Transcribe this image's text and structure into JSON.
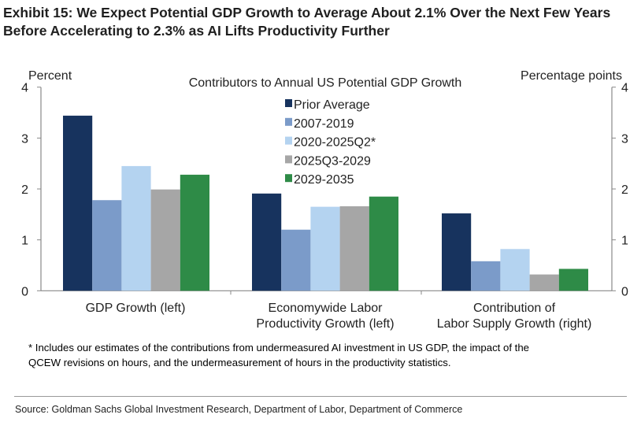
{
  "title_line1": "Exhibit 15: We Expect Potential GDP Growth to Average About 2.1% Over the Next Few Years",
  "title_line2": "Before Accelerating to 2.3% as AI Lifts Productivity Further",
  "footnote_line1": "* Includes our estimates of the contributions from undermeasured AI investment in US GDP, the impact of the",
  "footnote_line2": "QCEW revisions on hours, and the undermeasurement of hours in the productivity statistics.",
  "source": "Source: Goldman Sachs Global Investment Research, Department of Labor, Department of Commerce",
  "chart_data": {
    "type": "bar",
    "title": "Contributors to Annual US Potential GDP Growth",
    "ylabel_left": "Percent",
    "ylabel_right": "Percentage points",
    "ylim": [
      0,
      4
    ],
    "yticks": [
      "0",
      "1",
      "2",
      "3",
      "4"
    ],
    "categories": [
      [
        "GDP Growth (left)"
      ],
      [
        "Economywide Labor",
        "Productivity Growth (left)"
      ],
      [
        "Contribution of",
        "Labor Supply Growth (right)"
      ]
    ],
    "series": [
      {
        "name": "Prior Average",
        "color": "#17335e",
        "values": [
          3.44,
          1.91,
          1.52
        ]
      },
      {
        "name": "2007-2019",
        "color": "#7b9bc9",
        "values": [
          1.78,
          1.2,
          0.58
        ]
      },
      {
        "name": "2020-2025Q2*",
        "color": "#b4d3f0",
        "values": [
          2.45,
          1.65,
          0.82
        ]
      },
      {
        "name": "2025Q3-2029",
        "color": "#a6a6a6",
        "values": [
          1.99,
          1.66,
          0.32
        ]
      },
      {
        "name": "2029-2035",
        "color": "#2e8b47",
        "values": [
          2.28,
          1.85,
          0.43
        ]
      }
    ],
    "legend_position": "top-center",
    "grid": false
  }
}
